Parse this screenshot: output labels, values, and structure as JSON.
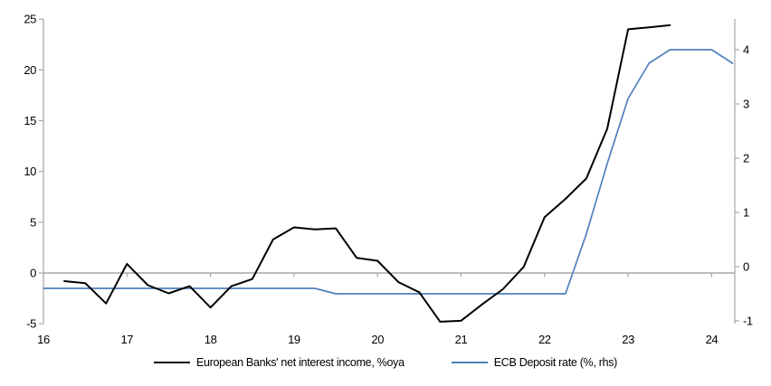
{
  "chart_data": {
    "type": "line",
    "title": "",
    "grid": "zero-line-only",
    "legend_position": "bottom-center",
    "background_color": "#ffffff",
    "axis_color": "#a6a6a6",
    "x_axis": {
      "tick_labels": [
        "16",
        "17",
        "18",
        "19",
        "20",
        "21",
        "22",
        "23",
        "24"
      ],
      "tick_values": [
        16,
        17,
        18,
        19,
        20,
        21,
        22,
        23,
        24
      ],
      "range": [
        16,
        24.28
      ]
    },
    "left_axis": {
      "tick_values": [
        -5,
        0,
        5,
        10,
        15,
        20,
        25
      ],
      "range": [
        -5,
        25
      ]
    },
    "right_axis": {
      "tick_values": [
        -1,
        0,
        1,
        2,
        3,
        4
      ],
      "range": [
        -1,
        4
      ]
    },
    "series": [
      {
        "name": "European Banks' net interest income, %oya",
        "axis": "left",
        "color": "#000000",
        "width": 2,
        "x": [
          16.25,
          16.5,
          16.75,
          17.0,
          17.25,
          17.5,
          17.75,
          18.0,
          18.25,
          18.5,
          18.75,
          19.0,
          19.25,
          19.5,
          19.75,
          20.0,
          20.25,
          20.5,
          20.75,
          21.0,
          21.25,
          21.5,
          21.75,
          22.0,
          22.25,
          22.5,
          22.75,
          23.0,
          23.25,
          23.5
        ],
        "values": [
          -0.8,
          -1.0,
          -3.0,
          0.9,
          -1.2,
          -2.0,
          -1.3,
          -3.4,
          -1.3,
          -0.6,
          3.3,
          4.5,
          4.3,
          4.4,
          1.5,
          1.2,
          -0.9,
          -1.9,
          -4.8,
          -4.7,
          -3.1,
          -1.6,
          0.6,
          5.5,
          7.3,
          9.3,
          14.2,
          24.0,
          24.2,
          24.4
        ]
      },
      {
        "name": "ECB Deposit rate (%, rhs)",
        "axis": "right",
        "color": "#4f81bd",
        "width": 1.7,
        "x": [
          16.0,
          16.25,
          16.5,
          16.75,
          17.0,
          17.25,
          17.5,
          17.75,
          18.0,
          18.25,
          18.5,
          18.75,
          19.0,
          19.25,
          19.5,
          19.75,
          20.0,
          20.25,
          20.5,
          20.75,
          21.0,
          21.25,
          21.5,
          21.75,
          22.0,
          22.25,
          22.5,
          22.75,
          23.0,
          23.25,
          23.5,
          23.75,
          24.0,
          24.25
        ],
        "values": [
          -0.4,
          -0.4,
          -0.4,
          -0.4,
          -0.4,
          -0.4,
          -0.4,
          -0.4,
          -0.4,
          -0.4,
          -0.4,
          -0.4,
          -0.4,
          -0.4,
          -0.5,
          -0.5,
          -0.5,
          -0.5,
          -0.5,
          -0.5,
          -0.5,
          -0.5,
          -0.5,
          -0.5,
          -0.5,
          -0.5,
          0.6,
          1.9,
          3.1,
          3.75,
          4.0,
          4.0,
          4.0,
          3.75
        ]
      }
    ]
  }
}
